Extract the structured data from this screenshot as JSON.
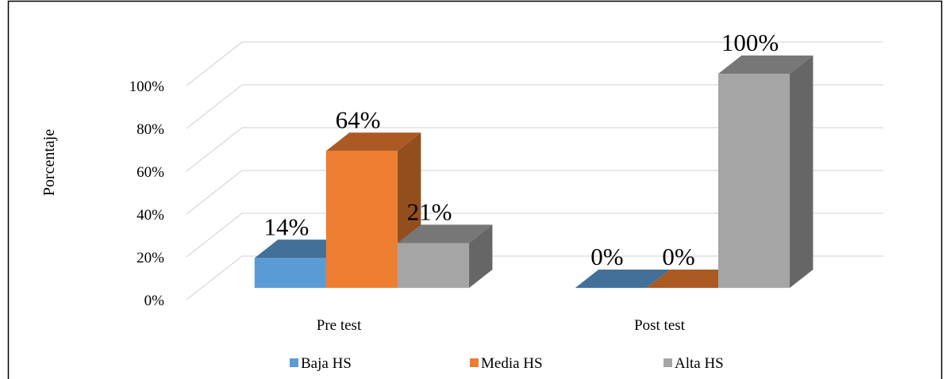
{
  "chart_data": {
    "type": "bar3d",
    "y_label": "Porcentaje",
    "categories": [
      "Pre test",
      "Post test"
    ],
    "series": [
      {
        "name": "Baja HS",
        "color": "#5b9bd5",
        "values": [
          14,
          0
        ],
        "value_labels": [
          "14%",
          "0%"
        ]
      },
      {
        "name": "Media HS",
        "color": "#ed7d31",
        "values": [
          64,
          0
        ],
        "value_labels": [
          "64%",
          "0%"
        ]
      },
      {
        "name": "Alta HS",
        "color": "#a5a5a5",
        "values": [
          21,
          100
        ],
        "value_labels": [
          "21%",
          "100%"
        ]
      }
    ],
    "ylim": [
      0,
      100
    ],
    "yticks": [
      {
        "value": 0,
        "label": "0%"
      },
      {
        "value": 20,
        "label": "20%"
      },
      {
        "value": 40,
        "label": "40%"
      },
      {
        "value": 60,
        "label": "60%"
      },
      {
        "value": 80,
        "label": "80%"
      },
      {
        "value": 100,
        "label": "100%"
      }
    ],
    "grid": true,
    "legend": "bottom"
  }
}
